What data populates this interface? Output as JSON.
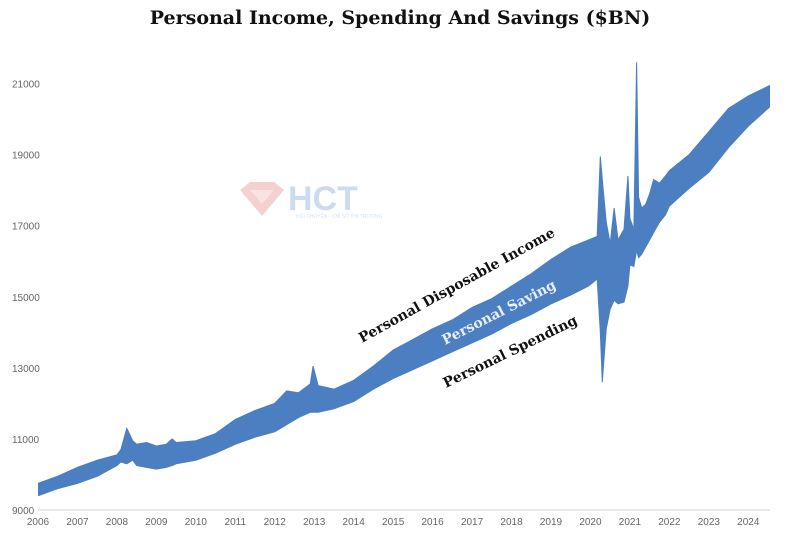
{
  "chart_data": {
    "type": "area",
    "title": "Personal Income, Spending And Savings ($BN)",
    "xlabel": "",
    "ylabel": "",
    "xlim": [
      2006,
      2024.55
    ],
    "ylim": [
      9000,
      22000
    ],
    "x_ticks": [
      "2006",
      "2007",
      "2008",
      "2009",
      "2010",
      "2011",
      "2012",
      "2013",
      "2014",
      "2015",
      "2016",
      "2017",
      "2018",
      "2019",
      "2020",
      "2021",
      "2022",
      "2023",
      "2024"
    ],
    "y_ticks": [
      "9000",
      "11000",
      "13000",
      "15000",
      "17000",
      "19000",
      "21000"
    ],
    "grid": false,
    "legend": "none",
    "series": [
      {
        "name": "Personal Disposable Income",
        "x": [
          2006,
          2006.5,
          2007,
          2007.5,
          2008,
          2008.1,
          2008.25,
          2008.4,
          2008.5,
          2008.75,
          2009,
          2009.25,
          2009.4,
          2009.5,
          2010,
          2010.5,
          2011,
          2011.5,
          2012,
          2012.3,
          2012.6,
          2012.9,
          2012.97,
          2013.1,
          2013.5,
          2014,
          2014.5,
          2015,
          2015.5,
          2016,
          2016.5,
          2017,
          2017.5,
          2018,
          2018.5,
          2019,
          2019.5,
          2019.95,
          2020.17,
          2020.25,
          2020.3,
          2020.4,
          2020.5,
          2020.6,
          2020.7,
          2020.85,
          2020.95,
          2021.0,
          2021.1,
          2021.17,
          2021.22,
          2021.3,
          2021.4,
          2021.5,
          2021.6,
          2021.75,
          2021.9,
          2022,
          2022.5,
          2023,
          2023.5,
          2024,
          2024.55
        ],
        "income": [
          9750,
          9950,
          10200,
          10400,
          10550,
          10700,
          11300,
          10950,
          10850,
          10900,
          10800,
          10850,
          11000,
          10900,
          10950,
          11150,
          11550,
          11800,
          12000,
          12350,
          12300,
          12550,
          13050,
          12500,
          12400,
          12650,
          13050,
          13500,
          13800,
          14100,
          14350,
          14700,
          14950,
          15300,
          15650,
          16050,
          16400,
          16600,
          16700,
          18950,
          18300,
          17100,
          16500,
          17500,
          16600,
          16900,
          18400,
          17200,
          16900,
          21600,
          17800,
          17500,
          17600,
          17900,
          18300,
          18200,
          18400,
          18550,
          19000,
          19650,
          20300,
          20650,
          20950
        ]
      },
      {
        "name": "Personal Spending",
        "x": [
          2006,
          2006.5,
          2007,
          2007.5,
          2008,
          2008.1,
          2008.25,
          2008.4,
          2008.5,
          2008.75,
          2009,
          2009.25,
          2009.4,
          2009.5,
          2010,
          2010.5,
          2011,
          2011.5,
          2012,
          2012.3,
          2012.6,
          2012.9,
          2012.97,
          2013.1,
          2013.5,
          2014,
          2014.5,
          2015,
          2015.5,
          2016,
          2016.5,
          2017,
          2017.5,
          2018,
          2018.5,
          2019,
          2019.5,
          2019.95,
          2020.17,
          2020.25,
          2020.3,
          2020.4,
          2020.5,
          2020.6,
          2020.7,
          2020.85,
          2020.95,
          2021.0,
          2021.1,
          2021.17,
          2021.22,
          2021.3,
          2021.4,
          2021.5,
          2021.6,
          2021.75,
          2021.9,
          2022,
          2022.5,
          2023,
          2023.5,
          2024,
          2024.55
        ],
        "spending": [
          9400,
          9600,
          9750,
          9950,
          10250,
          10350,
          10300,
          10400,
          10250,
          10200,
          10150,
          10200,
          10250,
          10300,
          10400,
          10600,
          10850,
          11050,
          11200,
          11400,
          11600,
          11750,
          11750,
          11750,
          11850,
          12050,
          12400,
          12700,
          12950,
          13200,
          13450,
          13700,
          13950,
          14250,
          14500,
          14800,
          15050,
          15300,
          15500,
          14000,
          12600,
          14100,
          14650,
          14900,
          14800,
          14850,
          15300,
          15900,
          15850,
          16300,
          16100,
          16200,
          16400,
          16600,
          16800,
          17100,
          17300,
          17550,
          18050,
          18500,
          19200,
          19800,
          20350
        ]
      }
    ],
    "annotations": {
      "income_label": "Personal Disposable Income",
      "saving_label": "Personal Saving",
      "spending_label": "Personal Spending"
    },
    "colors": {
      "band": "#4b7fc1",
      "saving_text": "#e6eefb",
      "label_text": "#111111",
      "axis_text": "#666666"
    }
  },
  "watermark": {
    "text": "HCT",
    "subtext": "HỘI CHUYÊN - CHỈ SỐ THỊ TRƯỜNG"
  }
}
